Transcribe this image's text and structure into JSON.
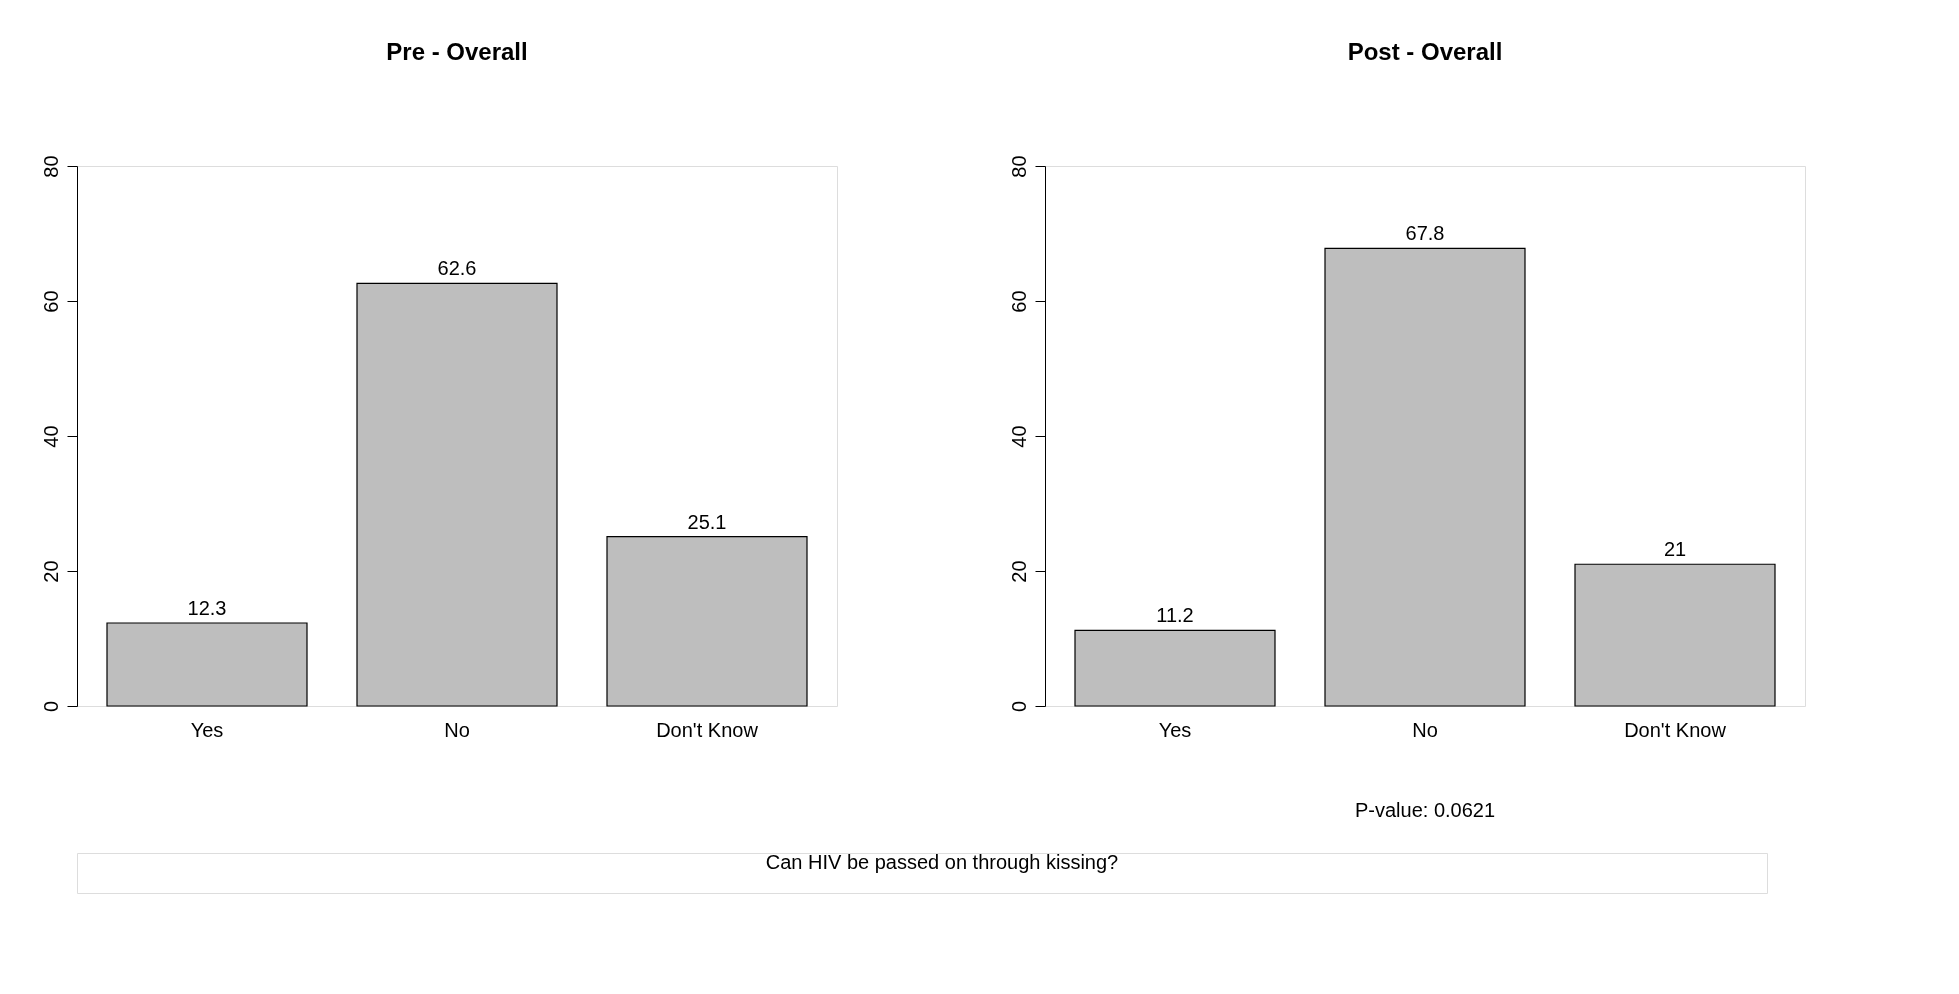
{
  "chart_data": [
    {
      "type": "bar",
      "title": "Pre - Overall",
      "categories": [
        "Yes",
        "No",
        "Don't Know"
      ],
      "values": [
        12.3,
        62.6,
        25.1
      ],
      "color": "#bebebe",
      "ylim": [
        0,
        80
      ],
      "yticks": [
        0,
        20,
        40,
        60,
        80
      ],
      "data_labels": true,
      "grid": false,
      "annotations": [
        "Can HIV be passed on through kissing?"
      ]
    },
    {
      "type": "bar",
      "title": "Post - Overall",
      "categories": [
        "Yes",
        "No",
        "Don't Know"
      ],
      "values": [
        11.2,
        67.8,
        21
      ],
      "color": "#bebebe",
      "ylim": [
        0,
        80
      ],
      "yticks": [
        0,
        20,
        40,
        60,
        80
      ],
      "data_labels": true,
      "grid": false,
      "annotations": [
        "P-value: 0.0621"
      ]
    }
  ]
}
